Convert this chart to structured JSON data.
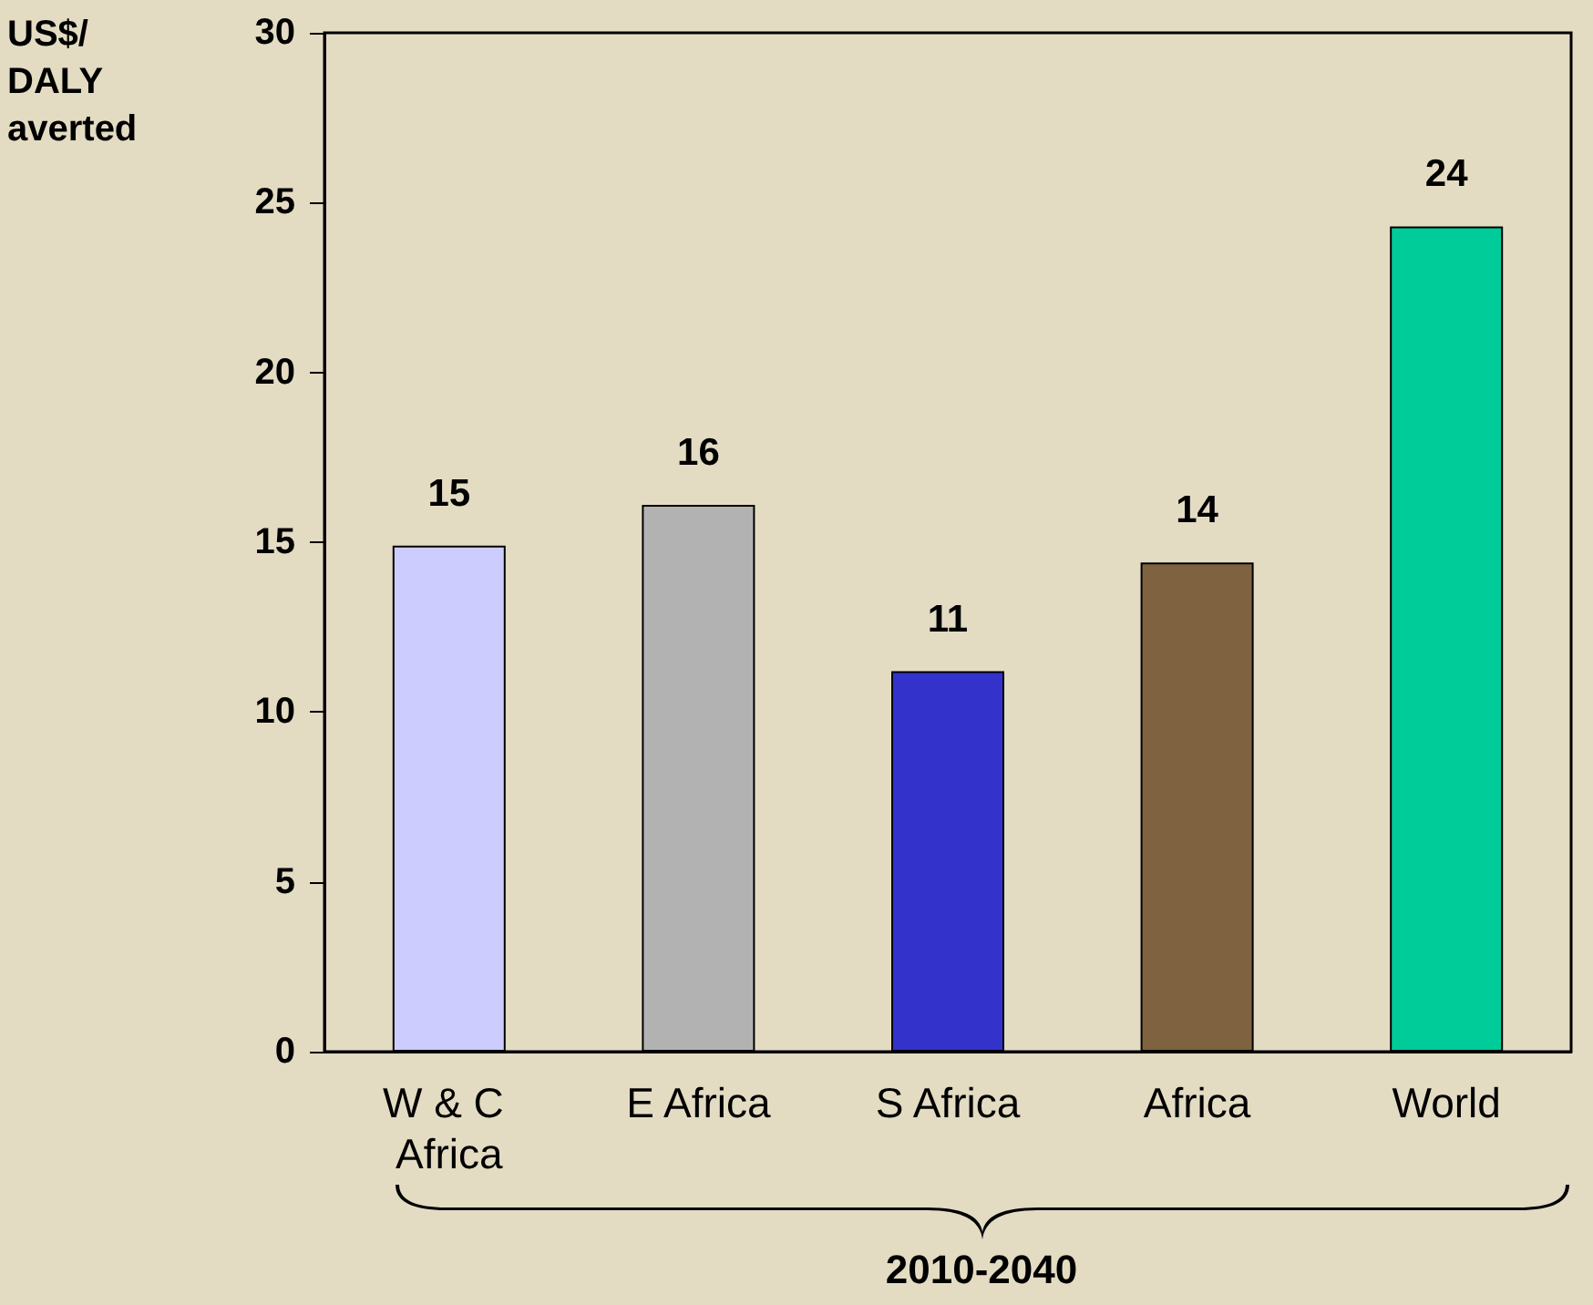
{
  "chart_data": {
    "type": "bar",
    "ylabel": "US$/ DALY averted",
    "categories": [
      "W & C Africa",
      "E Africa",
      "S Africa",
      "Africa",
      "World"
    ],
    "values": [
      14.9,
      16.1,
      11.2,
      14.4,
      24.3
    ],
    "value_labels": [
      "15",
      "16",
      "11",
      "14",
      "24"
    ],
    "colors": [
      "#ccccff",
      "#b2b2b2",
      "#3333cc",
      "#7f6340",
      "#00cc99"
    ],
    "ylim": [
      0,
      30
    ],
    "yticks": [
      0,
      5,
      10,
      15,
      20,
      25,
      30
    ],
    "grid": false,
    "annotations": [
      "2010-2040"
    ]
  }
}
